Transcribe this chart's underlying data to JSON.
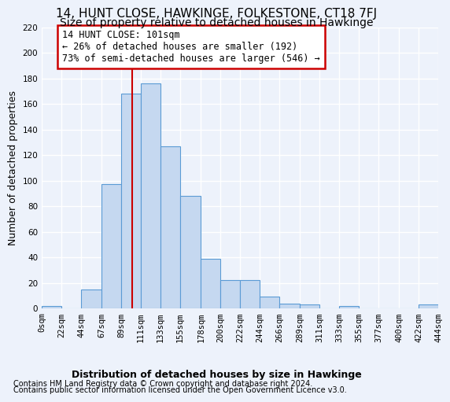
{
  "title": "14, HUNT CLOSE, HAWKINGE, FOLKESTONE, CT18 7FJ",
  "subtitle": "Size of property relative to detached houses in Hawkinge",
  "xlabel": "Distribution of detached houses by size in Hawkinge",
  "ylabel": "Number of detached properties",
  "bar_edges": [
    0,
    22,
    44,
    67,
    89,
    111,
    133,
    155,
    178,
    200,
    222,
    244,
    266,
    289,
    311,
    333,
    355,
    377,
    400,
    422,
    444
  ],
  "bar_heights": [
    2,
    0,
    15,
    97,
    168,
    176,
    127,
    88,
    39,
    22,
    22,
    9,
    4,
    3,
    0,
    2,
    0,
    0,
    0,
    3
  ],
  "bar_color": "#c5d8f0",
  "bar_edge_color": "#5b9bd5",
  "property_line_x": 101,
  "annotation_text": "14 HUNT CLOSE: 101sqm\n← 26% of detached houses are smaller (192)\n73% of semi-detached houses are larger (546) →",
  "annotation_box_color": "#ffffff",
  "annotation_box_edge_color": "#cc0000",
  "vline_color": "#cc0000",
  "footer_line1": "Contains HM Land Registry data © Crown copyright and database right 2024.",
  "footer_line2": "Contains public sector information licensed under the Open Government Licence v3.0.",
  "ylim": [
    0,
    220
  ],
  "yticks": [
    0,
    20,
    40,
    60,
    80,
    100,
    120,
    140,
    160,
    180,
    200,
    220
  ],
  "background_color": "#edf2fb",
  "grid_color": "#ffffff",
  "title_fontsize": 11,
  "subtitle_fontsize": 10,
  "annotation_fontsize": 8.5,
  "axis_label_fontsize": 9,
  "tick_fontsize": 7.5,
  "footer_fontsize": 7,
  "ylabel_fontsize": 9
}
